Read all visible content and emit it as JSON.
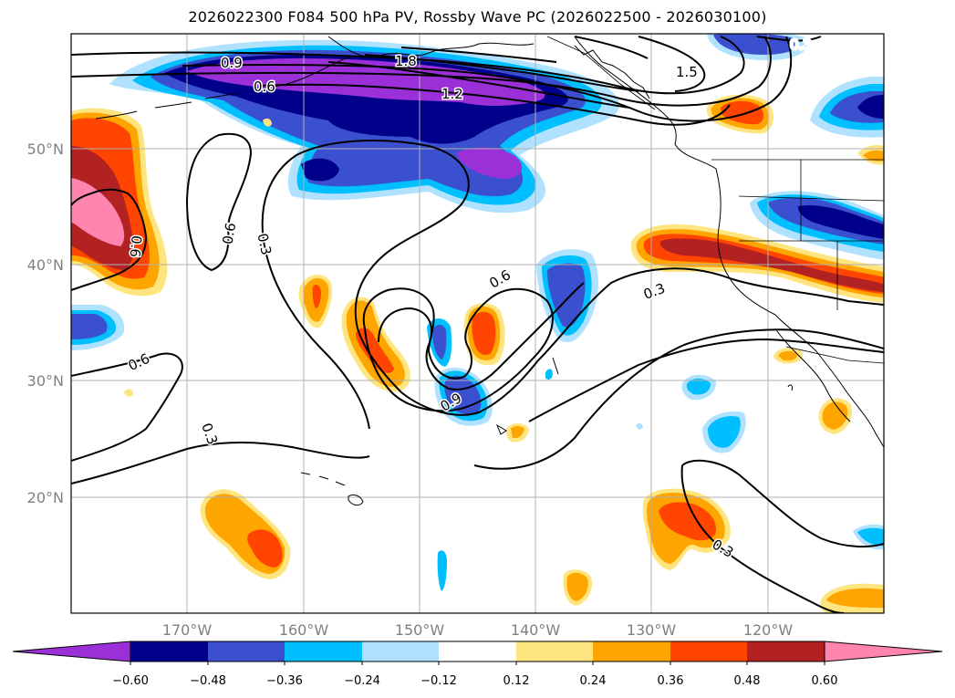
{
  "title": "2026022300 F084 500 hPa PV, Rossby Wave PC (2026022500 - 2026030100)",
  "map": {
    "lat_labels": [
      "50°N",
      "40°N",
      "30°N",
      "20°N"
    ],
    "lon_labels": [
      "170°W",
      "160°W",
      "150°W",
      "140°W",
      "130°W",
      "120°W"
    ],
    "contour_labels": [
      "0.9",
      "1.8",
      "0.6",
      "1.2",
      "1.5",
      "0.3",
      "0.6",
      "0.3",
      "0.6",
      "0.6",
      "0.3",
      "0.6",
      "0.3",
      "0.9",
      "0.3",
      "0.3"
    ]
  },
  "colorbar": {
    "ticks": [
      "−0.60",
      "−0.48",
      "−0.36",
      "−0.24",
      "−0.12",
      "0.12",
      "0.24",
      "0.36",
      "0.48",
      "0.60"
    ],
    "colors": [
      "#9b30d9",
      "#00008b",
      "#3a50cf",
      "#00bfff",
      "#b0e2ff",
      "#ffffff",
      "#ffe57f",
      "#ffa500",
      "#ff4500",
      "#b22222",
      "#ff85b0"
    ]
  },
  "colors": {
    "purple": "#9b30d9",
    "navy": "#00008b",
    "royal": "#3a50cf",
    "sky": "#00bfff",
    "pale_blue": "#b0e2ff",
    "pale_yellow": "#ffe57f",
    "orange": "#ffa500",
    "red_orange": "#ff4500",
    "firebrick": "#b22222",
    "pink": "#ff85b0"
  }
}
